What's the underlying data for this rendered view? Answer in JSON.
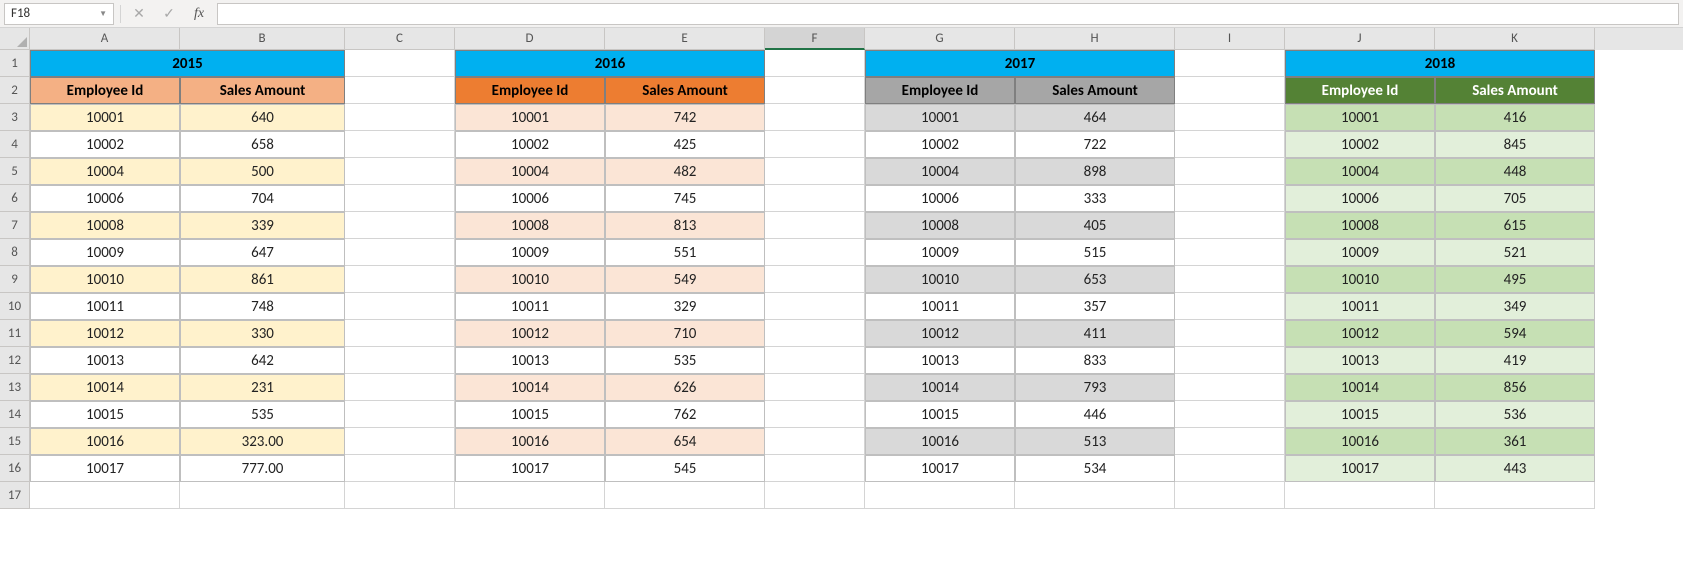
{
  "nameBox": "F18",
  "formula": "",
  "colWidths": {
    "A": 150,
    "B": 165,
    "C": 110,
    "D": 150,
    "E": 160,
    "F": 100,
    "G": 150,
    "H": 160,
    "I": 110,
    "J": 150,
    "K": 160
  },
  "columns": [
    "A",
    "B",
    "C",
    "D",
    "E",
    "F",
    "G",
    "H",
    "I",
    "J",
    "K"
  ],
  "rowCount": 17,
  "activeCell": {
    "col": "F",
    "row": 18
  },
  "selectedColumn": "F",
  "colors": {
    "blueHeader": "#00b0f0",
    "orangeHeader": "#f4b084",
    "orangeDarkHeader": "#ed7d31",
    "grayHeader": "#a6a6a6",
    "greenHeader": "#548235",
    "altYellow": "#fff2cc",
    "altOrange": "#fbe5d6",
    "altGray": "#d9d9d9",
    "altGreenLight": "#e2efda",
    "altGreenMed": "#c6e0b4",
    "white": "#ffffff",
    "textBlack": "#000000"
  },
  "tables": [
    {
      "year": "2015",
      "cols": [
        "A",
        "B"
      ],
      "headerBg": "#f4b084",
      "altBg": "#fff2cc",
      "headerLabels": [
        "Employee Id",
        "Sales Amount"
      ],
      "rows": [
        [
          "10001",
          "640"
        ],
        [
          "10002",
          "658"
        ],
        [
          "10004",
          "500"
        ],
        [
          "10006",
          "704"
        ],
        [
          "10008",
          "339"
        ],
        [
          "10009",
          "647"
        ],
        [
          "10010",
          "861"
        ],
        [
          "10011",
          "748"
        ],
        [
          "10012",
          "330"
        ],
        [
          "10013",
          "642"
        ],
        [
          "10014",
          "231"
        ],
        [
          "10015",
          "535"
        ],
        [
          "10016",
          "323.00"
        ],
        [
          "10017",
          "777.00"
        ]
      ]
    },
    {
      "year": "2016",
      "cols": [
        "D",
        "E"
      ],
      "headerBg": "#ed7d31",
      "altBg": "#fbe5d6",
      "headerLabels": [
        "Employee Id",
        "Sales Amount"
      ],
      "rows": [
        [
          "10001",
          "742"
        ],
        [
          "10002",
          "425"
        ],
        [
          "10004",
          "482"
        ],
        [
          "10006",
          "745"
        ],
        [
          "10008",
          "813"
        ],
        [
          "10009",
          "551"
        ],
        [
          "10010",
          "549"
        ],
        [
          "10011",
          "329"
        ],
        [
          "10012",
          "710"
        ],
        [
          "10013",
          "535"
        ],
        [
          "10014",
          "626"
        ],
        [
          "10015",
          "762"
        ],
        [
          "10016",
          "654"
        ],
        [
          "10017",
          "545"
        ]
      ]
    },
    {
      "year": "2017",
      "cols": [
        "G",
        "H"
      ],
      "headerBg": "#a6a6a6",
      "altBg": "#d9d9d9",
      "headerLabels": [
        "Employee Id",
        "Sales Amount"
      ],
      "rows": [
        [
          "10001",
          "464"
        ],
        [
          "10002",
          "722"
        ],
        [
          "10004",
          "898"
        ],
        [
          "10006",
          "333"
        ],
        [
          "10008",
          "405"
        ],
        [
          "10009",
          "515"
        ],
        [
          "10010",
          "653"
        ],
        [
          "10011",
          "357"
        ],
        [
          "10012",
          "411"
        ],
        [
          "10013",
          "833"
        ],
        [
          "10014",
          "793"
        ],
        [
          "10015",
          "446"
        ],
        [
          "10016",
          "513"
        ],
        [
          "10017",
          "534"
        ]
      ]
    },
    {
      "year": "2018",
      "cols": [
        "J",
        "K"
      ],
      "headerBg": "#548235",
      "altBg": "#c6e0b4",
      "plainBg": "#e2efda",
      "headerLabels": [
        "Employee Id",
        "Sales Amount"
      ],
      "rows": [
        [
          "10001",
          "416"
        ],
        [
          "10002",
          "845"
        ],
        [
          "10004",
          "448"
        ],
        [
          "10006",
          "705"
        ],
        [
          "10008",
          "615"
        ],
        [
          "10009",
          "521"
        ],
        [
          "10010",
          "495"
        ],
        [
          "10011",
          "349"
        ],
        [
          "10012",
          "594"
        ],
        [
          "10013",
          "419"
        ],
        [
          "10014",
          "856"
        ],
        [
          "10015",
          "536"
        ],
        [
          "10016",
          "361"
        ],
        [
          "10017",
          "443"
        ]
      ]
    }
  ]
}
